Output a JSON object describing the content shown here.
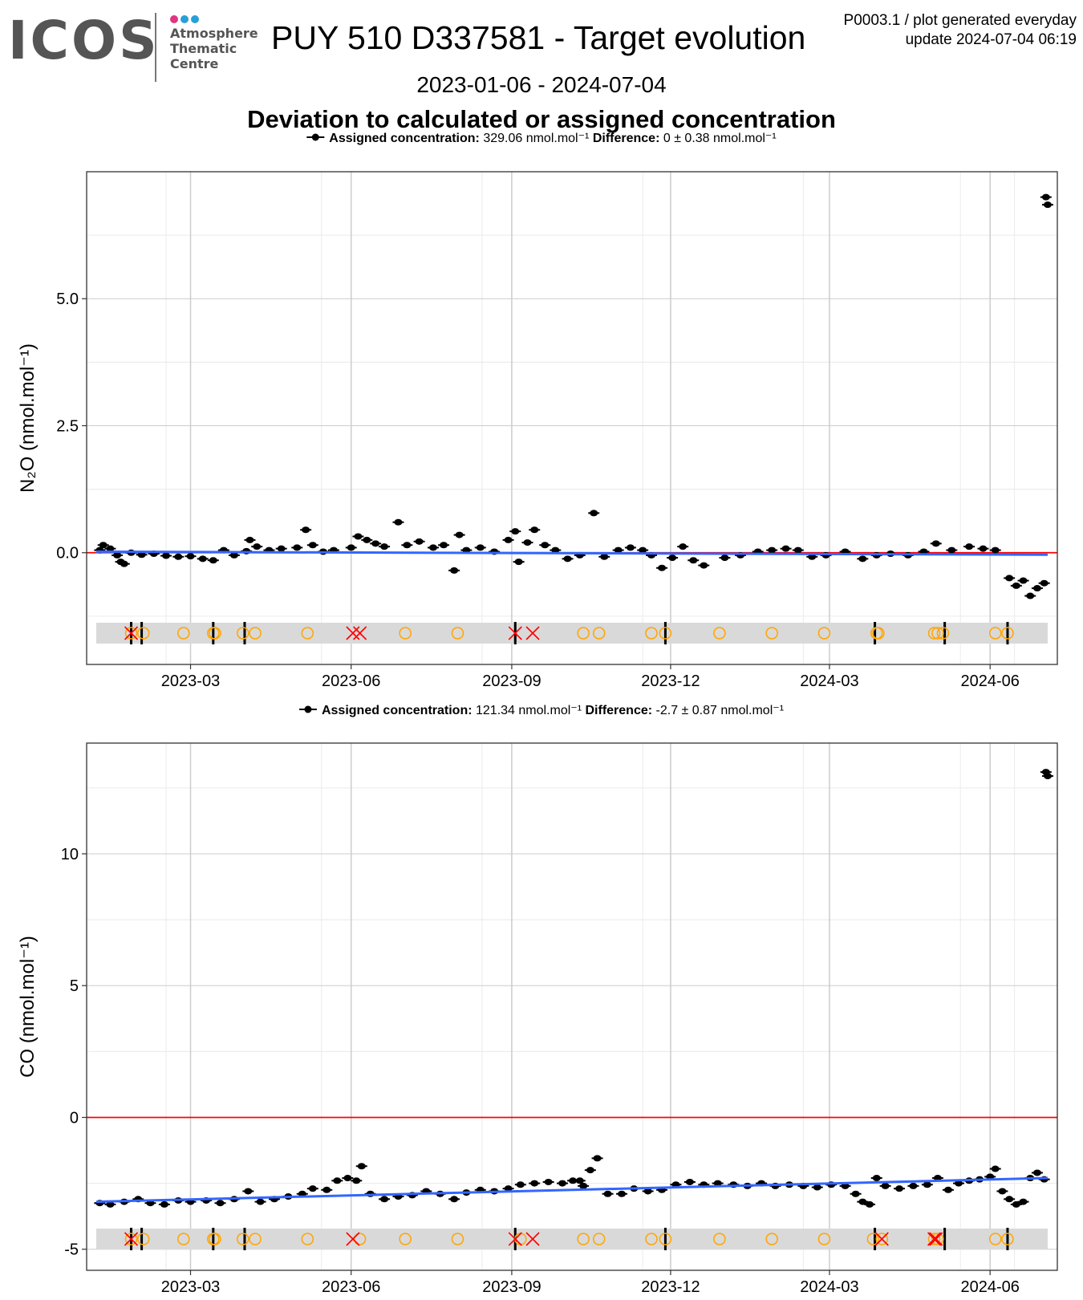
{
  "header": {
    "logo_text": "ICOS",
    "logo_sub_lines": [
      "Atmosphere",
      "Thematic",
      "Centre"
    ],
    "title": "PUY 510 D337581 - Target evolution",
    "corner_line1": "P0003.1 / plot generated everyday",
    "corner_line2": "update  2024-07-04 06:19",
    "date_range": "2023-01-06 - 2024-07-04",
    "subtitle": "Deviation to calculated or assigned concentration"
  },
  "colors": {
    "logo_dots": [
      "#e2357f",
      "#2a9fd6",
      "#2a9fd6"
    ],
    "logo_text": "#555555",
    "points": "#000000",
    "trend": "#3366ff",
    "zero_line": "#ff0000",
    "marker_band": "#d9d9d9",
    "circle_marker": "#ffa500",
    "cross_marker": "#ff0000",
    "grid_major": "#cccccc",
    "grid_minor": "#ebebeb"
  },
  "chart_data": [
    {
      "type": "scatter",
      "species": "N2O",
      "ylabel": "N₂O (nmol.mol⁻¹)",
      "legend": {
        "assigned_label": "Assigned concentration:",
        "assigned_value": "329.06 nmol.mol⁻¹",
        "difference_label": "Difference:",
        "difference_value": "0 ± 0.38 nmol.mol⁻¹",
        "placement": "top-center"
      },
      "xlim": [
        "2023-01-06",
        "2024-07-04"
      ],
      "ylim": [
        -2.2,
        7.5
      ],
      "yticks": [
        0.0,
        2.5,
        5.0
      ],
      "ytick_labels": [
        "0.0",
        "2.5",
        "5.0"
      ],
      "xticks": [
        "2023-03-01",
        "2023-06-01",
        "2023-09-01",
        "2023-12-01",
        "2024-03-01",
        "2024-06-01"
      ],
      "xtick_labels": [
        "2023-03",
        "2023-06",
        "2023-09",
        "2023-12",
        "2024-03",
        "2024-06"
      ],
      "zero_line": 0,
      "trend": {
        "start": {
          "x": "2023-01-06",
          "y": 0.02
        },
        "end": {
          "x": "2024-07-04",
          "y": -0.04
        }
      },
      "series": [
        {
          "values": [
            [
              "2023-01-08",
              0.05
            ],
            [
              "2023-01-10",
              0.15
            ],
            [
              "2023-01-14",
              0.08
            ],
            [
              "2023-01-18",
              -0.05
            ],
            [
              "2023-01-20",
              -0.18
            ],
            [
              "2023-01-22",
              -0.22
            ],
            [
              "2023-01-26",
              0.0
            ],
            [
              "2023-02-01",
              -0.04
            ],
            [
              "2023-02-08",
              -0.02
            ],
            [
              "2023-02-15",
              -0.06
            ],
            [
              "2023-02-22",
              -0.08
            ],
            [
              "2023-03-01",
              -0.07
            ],
            [
              "2023-03-08",
              -0.12
            ],
            [
              "2023-03-14",
              -0.15
            ],
            [
              "2023-03-20",
              0.05
            ],
            [
              "2023-03-26",
              -0.05
            ],
            [
              "2023-04-02",
              0.03
            ],
            [
              "2023-04-04",
              0.25
            ],
            [
              "2023-04-08",
              0.12
            ],
            [
              "2023-04-15",
              0.05
            ],
            [
              "2023-04-22",
              0.08
            ],
            [
              "2023-05-01",
              0.1
            ],
            [
              "2023-05-06",
              0.45
            ],
            [
              "2023-05-10",
              0.15
            ],
            [
              "2023-05-16",
              0.02
            ],
            [
              "2023-05-22",
              0.05
            ],
            [
              "2023-06-01",
              0.1
            ],
            [
              "2023-06-05",
              0.32
            ],
            [
              "2023-06-10",
              0.25
            ],
            [
              "2023-06-15",
              0.18
            ],
            [
              "2023-06-20",
              0.12
            ],
            [
              "2023-06-28",
              0.6
            ],
            [
              "2023-07-03",
              0.15
            ],
            [
              "2023-07-10",
              0.22
            ],
            [
              "2023-07-18",
              0.1
            ],
            [
              "2023-07-24",
              0.15
            ],
            [
              "2023-07-30",
              -0.35
            ],
            [
              "2023-08-02",
              0.35
            ],
            [
              "2023-08-06",
              0.05
            ],
            [
              "2023-08-14",
              0.1
            ],
            [
              "2023-08-22",
              0.02
            ],
            [
              "2023-08-30",
              0.25
            ],
            [
              "2023-09-03",
              0.42
            ],
            [
              "2023-09-05",
              -0.18
            ],
            [
              "2023-09-10",
              0.2
            ],
            [
              "2023-09-14",
              0.45
            ],
            [
              "2023-09-20",
              0.15
            ],
            [
              "2023-09-26",
              0.05
            ],
            [
              "2023-10-03",
              -0.12
            ],
            [
              "2023-10-10",
              -0.05
            ],
            [
              "2023-10-18",
              0.78
            ],
            [
              "2023-10-24",
              -0.08
            ],
            [
              "2023-11-01",
              0.05
            ],
            [
              "2023-11-08",
              0.1
            ],
            [
              "2023-11-15",
              0.05
            ],
            [
              "2023-11-20",
              -0.05
            ],
            [
              "2023-11-26",
              -0.3
            ],
            [
              "2023-12-02",
              -0.1
            ],
            [
              "2023-12-08",
              0.12
            ],
            [
              "2023-12-14",
              -0.15
            ],
            [
              "2023-12-20",
              -0.25
            ],
            [
              "2024-01-01",
              -0.1
            ],
            [
              "2024-01-10",
              -0.05
            ],
            [
              "2024-01-20",
              0.02
            ],
            [
              "2024-01-28",
              0.05
            ],
            [
              "2024-02-05",
              0.08
            ],
            [
              "2024-02-12",
              0.05
            ],
            [
              "2024-02-20",
              -0.08
            ],
            [
              "2024-02-28",
              -0.05
            ],
            [
              "2024-03-10",
              0.02
            ],
            [
              "2024-03-20",
              -0.12
            ],
            [
              "2024-03-28",
              -0.05
            ],
            [
              "2024-04-05",
              -0.02
            ],
            [
              "2024-04-15",
              -0.05
            ],
            [
              "2024-04-24",
              0.02
            ],
            [
              "2024-05-01",
              0.18
            ],
            [
              "2024-05-10",
              0.05
            ],
            [
              "2024-05-20",
              0.12
            ],
            [
              "2024-05-28",
              0.08
            ],
            [
              "2024-06-04",
              0.05
            ],
            [
              "2024-06-12",
              -0.5
            ],
            [
              "2024-06-16",
              -0.65
            ],
            [
              "2024-06-20",
              -0.55
            ],
            [
              "2024-06-24",
              -0.85
            ],
            [
              "2024-06-28",
              -0.7
            ],
            [
              "2024-07-02",
              -0.6
            ],
            [
              "2024-07-03",
              7.0
            ],
            [
              "2024-07-04",
              6.85
            ]
          ]
        }
      ],
      "markers": {
        "bars": [
          "2023-01-26",
          "2023-02-01",
          "2023-03-14",
          "2023-04-01",
          "2023-09-03",
          "2023-11-28",
          "2024-03-27",
          "2024-05-06",
          "2024-06-11"
        ],
        "circles": [
          "2023-01-26",
          "2023-02-02",
          "2023-02-25",
          "2023-03-14",
          "2023-03-15",
          "2023-03-31",
          "2023-04-07",
          "2023-05-07",
          "2023-07-02",
          "2023-08-01",
          "2023-10-12",
          "2023-10-21",
          "2023-11-20",
          "2023-11-28",
          "2023-12-29",
          "2024-01-28",
          "2024-02-27",
          "2024-03-28",
          "2024-03-29",
          "2024-04-30",
          "2024-05-02",
          "2024-05-05",
          "2024-06-04",
          "2024-06-11"
        ],
        "crosses": [
          "2023-01-26",
          "2023-06-02",
          "2023-06-06",
          "2023-09-03",
          "2023-09-13"
        ]
      }
    },
    {
      "type": "scatter",
      "species": "CO",
      "ylabel": "CO (nmol.mol⁻¹)",
      "legend": {
        "assigned_label": "Assigned concentration:",
        "assigned_value": "121.34 nmol.mol⁻¹",
        "difference_label": "Difference:",
        "difference_value": "-2.7 ± 0.87 nmol.mol⁻¹",
        "placement": "top-center"
      },
      "xlim": [
        "2023-01-06",
        "2024-07-04"
      ],
      "ylim": [
        -5.8,
        14.2
      ],
      "yticks": [
        -5,
        0,
        5,
        10
      ],
      "ytick_labels": [
        "-5",
        "0",
        "5",
        "10"
      ],
      "xticks": [
        "2023-03-01",
        "2023-06-01",
        "2023-09-01",
        "2023-12-01",
        "2024-03-01",
        "2024-06-01"
      ],
      "xtick_labels": [
        "2023-03",
        "2023-06",
        "2023-09",
        "2023-12",
        "2024-03",
        "2024-06"
      ],
      "zero_line": 0,
      "trend": {
        "start": {
          "x": "2023-01-06",
          "y": -3.2
        },
        "end": {
          "x": "2024-07-04",
          "y": -2.3
        }
      },
      "series": [
        {
          "values": [
            [
              "2023-01-08",
              -3.25
            ],
            [
              "2023-01-14",
              -3.3
            ],
            [
              "2023-01-22",
              -3.2
            ],
            [
              "2023-01-30",
              -3.1
            ],
            [
              "2023-02-06",
              -3.25
            ],
            [
              "2023-02-14",
              -3.3
            ],
            [
              "2023-02-22",
              -3.15
            ],
            [
              "2023-03-01",
              -3.2
            ],
            [
              "2023-03-10",
              -3.15
            ],
            [
              "2023-03-18",
              -3.25
            ],
            [
              "2023-03-26",
              -3.1
            ],
            [
              "2023-04-03",
              -2.8
            ],
            [
              "2023-04-10",
              -3.2
            ],
            [
              "2023-04-18",
              -3.1
            ],
            [
              "2023-04-26",
              -3.0
            ],
            [
              "2023-05-04",
              -2.9
            ],
            [
              "2023-05-10",
              -2.7
            ],
            [
              "2023-05-18",
              -2.75
            ],
            [
              "2023-05-24",
              -2.4
            ],
            [
              "2023-05-30",
              -2.3
            ],
            [
              "2023-06-04",
              -2.4
            ],
            [
              "2023-06-07",
              -1.85
            ],
            [
              "2023-06-12",
              -2.9
            ],
            [
              "2023-06-20",
              -3.1
            ],
            [
              "2023-06-28",
              -3.0
            ],
            [
              "2023-07-06",
              -2.95
            ],
            [
              "2023-07-14",
              -2.8
            ],
            [
              "2023-07-22",
              -2.9
            ],
            [
              "2023-07-30",
              -3.1
            ],
            [
              "2023-08-06",
              -2.85
            ],
            [
              "2023-08-14",
              -2.75
            ],
            [
              "2023-08-22",
              -2.8
            ],
            [
              "2023-08-30",
              -2.7
            ],
            [
              "2023-09-06",
              -2.55
            ],
            [
              "2023-09-14",
              -2.5
            ],
            [
              "2023-09-22",
              -2.45
            ],
            [
              "2023-09-30",
              -2.5
            ],
            [
              "2023-10-06",
              -2.4
            ],
            [
              "2023-10-10",
              -2.4
            ],
            [
              "2023-10-12",
              -2.6
            ],
            [
              "2023-10-16",
              -2.0
            ],
            [
              "2023-10-20",
              -1.55
            ],
            [
              "2023-10-26",
              -2.9
            ],
            [
              "2023-11-03",
              -2.9
            ],
            [
              "2023-11-10",
              -2.7
            ],
            [
              "2023-11-18",
              -2.8
            ],
            [
              "2023-11-26",
              -2.75
            ],
            [
              "2023-12-04",
              -2.55
            ],
            [
              "2023-12-12",
              -2.45
            ],
            [
              "2023-12-20",
              -2.55
            ],
            [
              "2023-12-28",
              -2.5
            ],
            [
              "2024-01-06",
              -2.55
            ],
            [
              "2024-01-14",
              -2.6
            ],
            [
              "2024-01-22",
              -2.5
            ],
            [
              "2024-01-30",
              -2.6
            ],
            [
              "2024-02-07",
              -2.55
            ],
            [
              "2024-02-15",
              -2.6
            ],
            [
              "2024-02-23",
              -2.65
            ],
            [
              "2024-03-02",
              -2.55
            ],
            [
              "2024-03-10",
              -2.6
            ],
            [
              "2024-03-16",
              -2.9
            ],
            [
              "2024-03-20",
              -3.2
            ],
            [
              "2024-03-24",
              -3.3
            ],
            [
              "2024-03-28",
              -2.3
            ],
            [
              "2024-04-02",
              -2.6
            ],
            [
              "2024-04-10",
              -2.7
            ],
            [
              "2024-04-18",
              -2.6
            ],
            [
              "2024-04-26",
              -2.55
            ],
            [
              "2024-05-02",
              -2.3
            ],
            [
              "2024-05-08",
              -2.75
            ],
            [
              "2024-05-14",
              -2.5
            ],
            [
              "2024-05-20",
              -2.4
            ],
            [
              "2024-05-26",
              -2.35
            ],
            [
              "2024-06-01",
              -2.25
            ],
            [
              "2024-06-04",
              -1.95
            ],
            [
              "2024-06-08",
              -2.8
            ],
            [
              "2024-06-12",
              -3.1
            ],
            [
              "2024-06-16",
              -3.3
            ],
            [
              "2024-06-20",
              -3.2
            ],
            [
              "2024-06-24",
              -2.3
            ],
            [
              "2024-06-28",
              -2.1
            ],
            [
              "2024-07-02",
              -2.35
            ],
            [
              "2024-07-03",
              13.1
            ],
            [
              "2024-07-04",
              12.95
            ]
          ]
        }
      ],
      "markers": {
        "bars": [
          "2023-01-26",
          "2023-02-01",
          "2023-03-14",
          "2023-04-01",
          "2023-09-03",
          "2023-11-28",
          "2024-03-27",
          "2024-05-06",
          "2024-06-11"
        ],
        "circles": [
          "2023-01-26",
          "2023-02-02",
          "2023-02-25",
          "2023-03-14",
          "2023-03-15",
          "2023-03-31",
          "2023-04-07",
          "2023-05-07",
          "2023-06-06",
          "2023-07-02",
          "2023-08-01",
          "2023-09-06",
          "2023-10-12",
          "2023-10-21",
          "2023-11-20",
          "2023-11-28",
          "2023-12-29",
          "2024-01-28",
          "2024-02-27",
          "2024-03-26",
          "2024-03-31",
          "2024-04-30",
          "2024-05-02",
          "2024-06-04",
          "2024-06-11"
        ],
        "crosses": [
          "2023-01-26",
          "2023-06-02",
          "2023-09-03",
          "2023-09-13",
          "2024-03-31",
          "2024-04-30",
          "2024-05-01"
        ]
      }
    }
  ]
}
